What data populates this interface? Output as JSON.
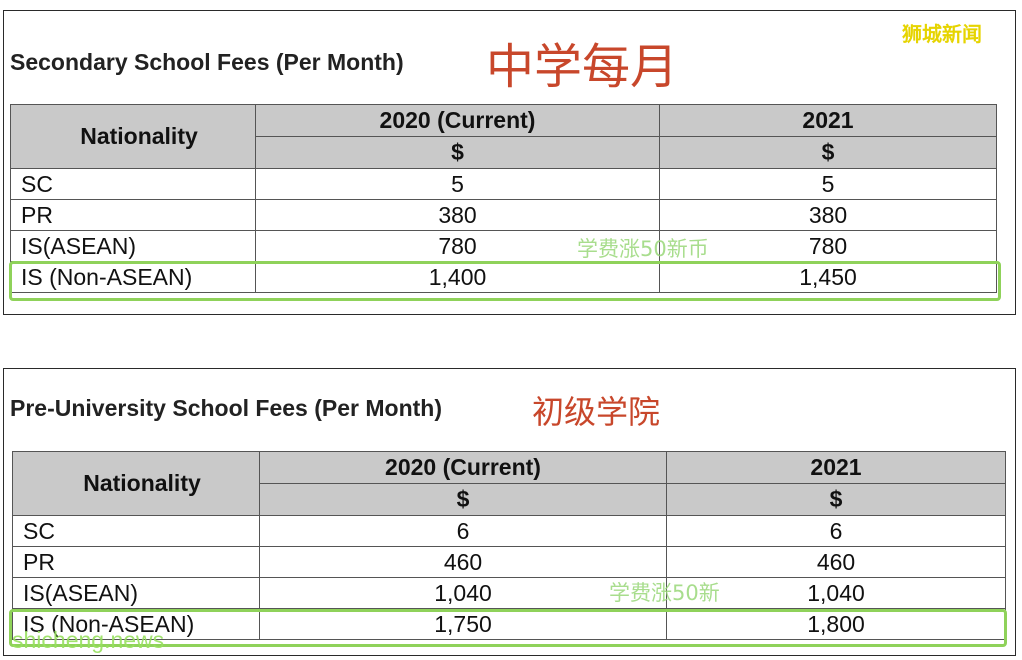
{
  "watermark": {
    "brand": "狮城新闻",
    "site": "shicheng.news"
  },
  "secondary": {
    "title": "Secondary School Fees (Per Month)",
    "title_cn": "中学每月",
    "annotation": "学费涨50新币",
    "header": {
      "nationality": "Nationality",
      "col1": "2020 (Current)",
      "col2": "2021",
      "currency1": "$",
      "currency2": "$"
    },
    "rows": [
      {
        "label": "SC",
        "v2020": "5",
        "v2021": "5"
      },
      {
        "label": "PR",
        "v2020": "380",
        "v2021": "380"
      },
      {
        "label": "IS(ASEAN)",
        "v2020": "780",
        "v2021": "780"
      },
      {
        "label": "IS (Non-ASEAN)",
        "v2020": "1,400",
        "v2021": "1,450"
      }
    ]
  },
  "preu": {
    "title": "Pre-University School Fees (Per Month)",
    "title_cn": "初级学院",
    "annotation": "学费涨50新",
    "header": {
      "nationality": "Nationality",
      "col1": "2020 (Current)",
      "col2": "2021",
      "currency1": "$",
      "currency2": "$"
    },
    "rows": [
      {
        "label": "SC",
        "v2020": "6",
        "v2021": "6"
      },
      {
        "label": "PR",
        "v2020": "460",
        "v2021": "460"
      },
      {
        "label": "IS(ASEAN)",
        "v2020": "1,040",
        "v2021": "1,040"
      },
      {
        "label": "IS (Non-ASEAN)",
        "v2020": "1,750",
        "v2021": "1,800"
      }
    ]
  },
  "colors": {
    "header_bg": "#c9c9c9",
    "highlight": "#8fd25a",
    "title_cn": "#c8472b",
    "brand": "#e6d400"
  }
}
